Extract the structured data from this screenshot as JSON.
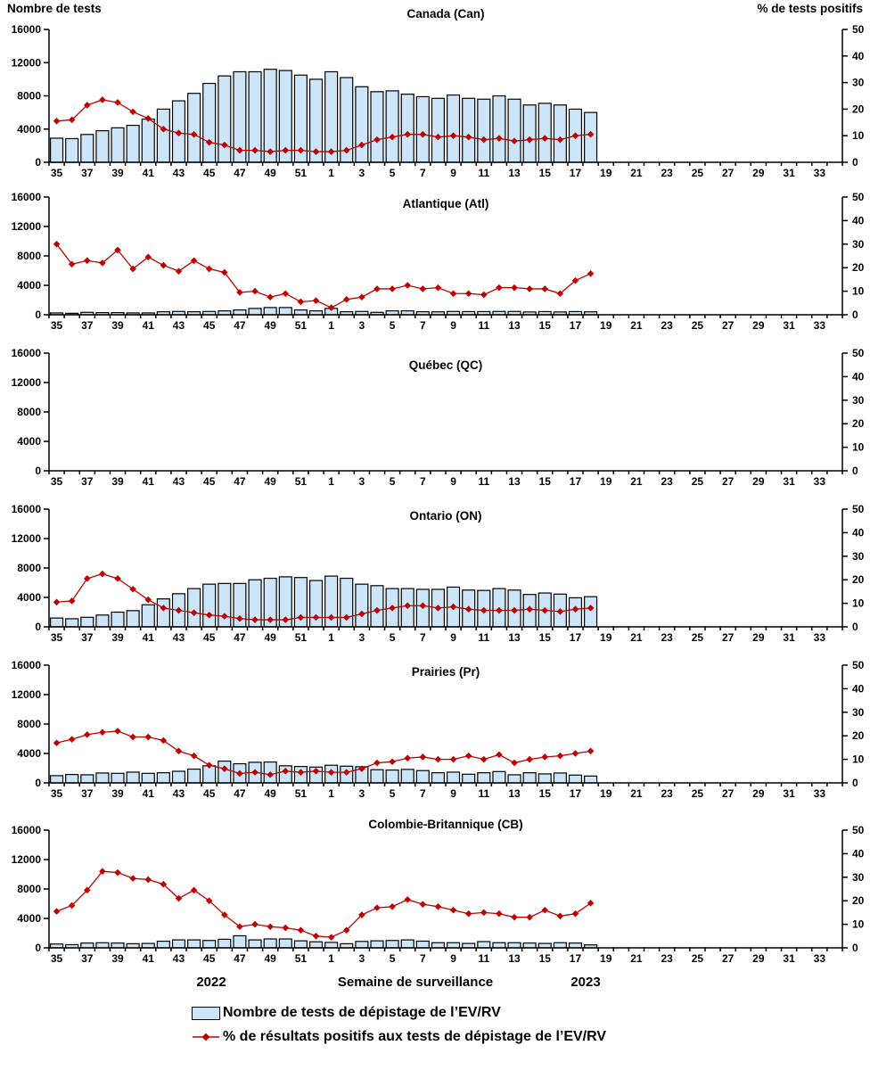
{
  "page": {
    "left_axis_title": "Nombre de tests",
    "right_axis_title": "% de tests positifs",
    "x_axis_title": "Semaine de surveillance",
    "year_left": "2022",
    "year_right": "2023"
  },
  "legend": [
    {
      "type": "bar",
      "label": "Nombre de tests de dépistage de l’EV/RV"
    },
    {
      "type": "line",
      "label": "% de résultats positifs aux tests de dépistage de l’EV/RV"
    }
  ],
  "colors": {
    "bar_fill": "#CCE5F8",
    "bar_border": "#000000",
    "line": "#C00000",
    "marker": "#C00000",
    "axis": "#000000"
  },
  "axes": {
    "left_ticks": [
      0,
      4000,
      8000,
      12000,
      16000
    ],
    "right_ticks": [
      0,
      10,
      20,
      30,
      40,
      50
    ],
    "left_max": 16000,
    "right_max": 50
  },
  "x_axis": {
    "categories": [
      "35",
      "36",
      "37",
      "38",
      "39",
      "40",
      "41",
      "42",
      "43",
      "44",
      "45",
      "46",
      "47",
      "48",
      "49",
      "50",
      "51",
      "52",
      "1",
      "2",
      "3",
      "4",
      "5",
      "6",
      "7",
      "8",
      "9",
      "10",
      "11",
      "12",
      "13",
      "14",
      "15",
      "16",
      "17",
      "18",
      "19",
      "20",
      "21",
      "22",
      "23",
      "24",
      "25",
      "26",
      "27",
      "28",
      "29",
      "30",
      "31",
      "32",
      "33",
      "34"
    ],
    "label_every": 2,
    "data_weeks": "2022-W35 through 2023-W18"
  },
  "chart_data": [
    {
      "type": "bar+line",
      "region": "Canada (Can)",
      "tests": [
        2900,
        2850,
        3350,
        3800,
        4150,
        4450,
        5200,
        6400,
        7400,
        8300,
        9500,
        10400,
        10900,
        10900,
        11200,
        11050,
        10500,
        10000,
        10900,
        10200,
        9100,
        8500,
        8600,
        8200,
        7900,
        7700,
        8100,
        7700,
        7600,
        8000,
        7600,
        6900,
        7100,
        6900,
        6400,
        6000
      ],
      "pct_positifs": [
        15.5,
        16,
        21.5,
        23.5,
        22.5,
        19,
        16.5,
        12.5,
        11,
        10.5,
        7.5,
        6.5,
        4.5,
        4.5,
        4,
        4.5,
        4.5,
        4,
        4,
        4.5,
        6.5,
        8.5,
        9.5,
        10.5,
        10.5,
        9.5,
        10,
        9.5,
        8.5,
        9,
        8,
        8.5,
        9,
        8.5,
        10,
        10.5
      ]
    },
    {
      "type": "bar+line",
      "region": "Atlantique (Atl)",
      "tests": [
        250,
        200,
        330,
        290,
        290,
        250,
        250,
        410,
        450,
        410,
        450,
        530,
        650,
        860,
        980,
        980,
        650,
        530,
        860,
        410,
        450,
        330,
        530,
        530,
        410,
        400,
        450,
        430,
        430,
        450,
        450,
        380,
        430,
        380,
        430,
        400
      ],
      "pct_positifs": [
        30,
        21.5,
        23,
        22,
        27.5,
        19.5,
        24.5,
        21,
        18.5,
        23,
        19.5,
        18,
        9.5,
        10,
        7.5,
        9,
        5.5,
        6,
        3,
        6.5,
        7.5,
        11,
        11,
        12.5,
        11,
        11.5,
        9,
        9,
        8.5,
        11.5,
        11.5,
        11,
        11,
        9,
        14.5,
        17.5
      ]
    },
    {
      "type": "bar+line",
      "region": "Québec (QC)",
      "tests": [],
      "pct_positifs": []
    },
    {
      "type": "bar+line",
      "region": "Ontario (ON)",
      "tests": [
        1200,
        1100,
        1300,
        1600,
        2000,
        2200,
        3000,
        3800,
        4500,
        5200,
        5800,
        5900,
        5900,
        6400,
        6600,
        6800,
        6700,
        6300,
        6900,
        6600,
        5800,
        5600,
        5200,
        5200,
        5100,
        5100,
        5400,
        5000,
        4950,
        5200,
        5000,
        4400,
        4600,
        4450,
        3950,
        4100
      ],
      "pct_positifs": [
        10.5,
        11,
        20.5,
        22.5,
        20.5,
        16,
        11.5,
        8,
        7,
        6,
        5,
        4.5,
        3.5,
        3,
        3,
        3,
        4,
        4,
        4,
        4,
        5.5,
        7,
        8,
        9,
        9,
        8,
        8.5,
        7.5,
        7,
        7,
        7,
        7.5,
        7,
        6.5,
        7.5,
        8
      ]
    },
    {
      "type": "bar+line",
      "region": "Prairies (Pr)",
      "tests": [
        980,
        1140,
        1100,
        1340,
        1300,
        1460,
        1300,
        1380,
        1580,
        1870,
        2320,
        2960,
        2600,
        2800,
        2840,
        2320,
        2230,
        2150,
        2400,
        2270,
        2190,
        1790,
        1750,
        1830,
        1670,
        1380,
        1460,
        1180,
        1380,
        1540,
        1100,
        1380,
        1220,
        1340,
        1060,
        930
      ],
      "pct_positifs": [
        17,
        18.5,
        20.5,
        21.5,
        22,
        19.5,
        19.5,
        18,
        13.5,
        11.5,
        7.5,
        6,
        4,
        4.5,
        3.5,
        5,
        4.5,
        5,
        4.5,
        4.5,
        6,
        8.5,
        9,
        10.5,
        11,
        10,
        10,
        11.5,
        10,
        12,
        8.5,
        10,
        11,
        11.5,
        12.5,
        13.5
      ]
    },
    {
      "type": "bar+line",
      "region": "Colombie-Britannique (CB)",
      "tests": [
        520,
        430,
        650,
        690,
        650,
        560,
        600,
        900,
        1080,
        1080,
        1000,
        1170,
        1640,
        1080,
        1210,
        1210,
        950,
        820,
        740,
        560,
        870,
        950,
        1000,
        1080,
        910,
        700,
        700,
        600,
        850,
        700,
        700,
        650,
        600,
        700,
        650,
        400
      ],
      "pct_positifs": [
        15.5,
        18,
        24.5,
        32.5,
        32,
        29.5,
        29,
        27,
        21,
        24.5,
        20,
        14,
        9,
        10,
        9,
        8.5,
        7.5,
        5,
        4.5,
        7.5,
        14,
        17,
        17.5,
        20.5,
        18.5,
        17.5,
        16,
        14.5,
        15,
        14.5,
        13,
        13,
        16,
        13.5,
        14.5,
        19
      ]
    }
  ]
}
